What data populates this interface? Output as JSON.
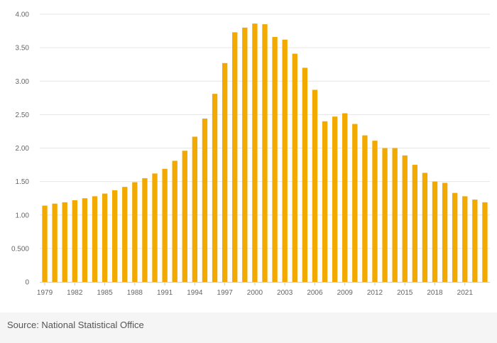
{
  "chart_data": {
    "type": "bar",
    "title": "",
    "xlabel": "",
    "ylabel": "",
    "ylim": [
      0,
      4
    ],
    "y_ticks": [
      0,
      0.5,
      1,
      1.5,
      2,
      2.5,
      3,
      3.5,
      4
    ],
    "y_tick_labels": [
      "0",
      "0.500",
      "1.00",
      "1.50",
      "2.00",
      "2.50",
      "3.00",
      "3.50",
      "4.00"
    ],
    "x_tick_labels": [
      "1979",
      "1982",
      "1985",
      "1988",
      "1991",
      "1994",
      "1997",
      "2000",
      "2003",
      "2006",
      "2009",
      "2012",
      "2015",
      "2018",
      "2021"
    ],
    "bar_color": "#f2a900",
    "grid": true,
    "categories": [
      "1979",
      "1980",
      "1981",
      "1982",
      "1983",
      "1984",
      "1985",
      "1986",
      "1987",
      "1988",
      "1989",
      "1990",
      "1991",
      "1992",
      "1993",
      "1994",
      "1995",
      "1996",
      "1997",
      "1998",
      "1999",
      "2000",
      "2001",
      "2002",
      "2003",
      "2004",
      "2005",
      "2006",
      "2007",
      "2008",
      "2009",
      "2010",
      "2011",
      "2012",
      "2013",
      "2014",
      "2015",
      "2016",
      "2017",
      "2018",
      "2019",
      "2020",
      "2021",
      "2022",
      "2023"
    ],
    "values": [
      1.14,
      1.17,
      1.19,
      1.22,
      1.25,
      1.28,
      1.32,
      1.37,
      1.42,
      1.49,
      1.55,
      1.62,
      1.69,
      1.81,
      1.96,
      2.17,
      2.44,
      2.81,
      3.27,
      3.73,
      3.8,
      3.86,
      3.85,
      3.66,
      3.62,
      3.41,
      3.2,
      2.87,
      2.4,
      2.47,
      2.52,
      2.36,
      2.19,
      2.11,
      2.0,
      2.0,
      1.89,
      1.75,
      1.63,
      1.5,
      1.48,
      1.33,
      1.28,
      1.23,
      1.19
    ]
  },
  "source": "Source: National Statistical Office"
}
